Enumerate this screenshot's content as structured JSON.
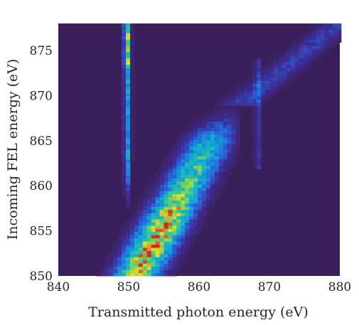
{
  "chart_data": {
    "type": "heatmap",
    "xlabel": "Transmitted photon energy (eV)",
    "ylabel": "Incoming FEL energy (eV)",
    "xlim": [
      840,
      880
    ],
    "ylim": [
      850,
      878
    ],
    "x_ticks": [
      840,
      850,
      860,
      870,
      880
    ],
    "y_ticks": [
      850,
      855,
      860,
      865,
      870,
      875
    ],
    "colormap": "parula-like",
    "background_color": "#3b1f5a",
    "features": [
      {
        "kind": "diagonal-band",
        "description": "Main inelastic band",
        "center_x_at_y850": 851,
        "center_x_at_y866": 862.5,
        "width_eV": 7,
        "peak_intensity": 1.0,
        "fade_x_end": 866.5
      },
      {
        "kind": "vertical-line",
        "description": "Elastic vertical line",
        "x": 849.8,
        "y_from": 857,
        "y_to": 878,
        "peak_intensity": 0.85
      },
      {
        "kind": "vertical-line",
        "description": "Faint vertical feature",
        "x": 868.3,
        "y_from": 862,
        "y_to": 874,
        "peak_intensity": 0.35
      },
      {
        "kind": "diagonal-band",
        "description": "Faint upper-right streak",
        "x_from": 869,
        "y_from": 871,
        "x_to": 880,
        "y_to": 878,
        "peak_intensity": 0.2
      }
    ]
  }
}
